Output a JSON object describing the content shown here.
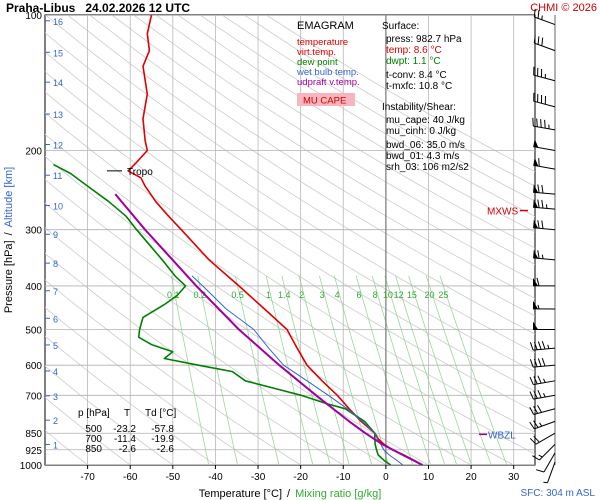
{
  "header": {
    "station": "Praha-Libus",
    "datetime": "24.02.2026 12 UTC",
    "copyright": "CHMI © 2026"
  },
  "legend": {
    "title": "EMAGRAM",
    "items": [
      {
        "label": "temperature",
        "color": "#e00000"
      },
      {
        "label": "virt.temp.",
        "color": "#e00000"
      },
      {
        "label": "dew point",
        "color": "#008000"
      },
      {
        "label": "wet bulb temp.",
        "color": "#3366cc"
      },
      {
        "label": "udpraft v.temp.",
        "color": "#a000a0"
      }
    ],
    "badge": "MU CAPE"
  },
  "surface": {
    "title": "Surface:",
    "lines": [
      {
        "text": "press: 982.7 hPa",
        "color": "#000000"
      },
      {
        "text": "temp: 8.6 °C",
        "color": "#e00000"
      },
      {
        "text": "dwpt: 1.1 °C",
        "color": "#008000"
      }
    ],
    "tconv": "t-conv: 8.4 °C",
    "tmxfc": "t-mxfc: 10.8 °C"
  },
  "instability": {
    "title": "Instability/Shear:",
    "lines": [
      "mu_cape: 40 J/kg",
      "mu_cinh: 0 J/kg",
      "",
      "bwd_06: 35.0 m/s",
      "bwd_01: 4.3 m/s",
      "srh_03: 106 m2/s2"
    ]
  },
  "table": {
    "headers": [
      "p [hPa]",
      "T",
      "Td [°C]"
    ],
    "rows": [
      [
        "500",
        "-23.2",
        "-57.8"
      ],
      [
        "700",
        "-11.4",
        "-19.9"
      ],
      [
        "850",
        "-2.6",
        "-2.6"
      ]
    ]
  },
  "labels": {
    "tropo": "Tropo",
    "mxws": "MXWS",
    "wbzl": "WBZL",
    "sfc": "SFC: 304 m ASL"
  },
  "chart_data": {
    "type": "line",
    "xlabel": "Temperature [°C]",
    "xlabel_sep": "/",
    "xlabel2": "Mixing ratio [g/kg]",
    "ylabel": "Pressure [hPa]",
    "ylabel_sep": "/",
    "ylabel2": "Altitude [km]",
    "xlim": [
      -80,
      35
    ],
    "ylim": [
      1000,
      100
    ],
    "y_scale": "log",
    "x_ticks": [
      -70,
      -60,
      -50,
      -40,
      -30,
      -20,
      -10,
      0,
      10,
      20,
      30
    ],
    "p_ticks": [
      100,
      200,
      300,
      400,
      500,
      600,
      700,
      850,
      925,
      1000
    ],
    "km_ticks": [
      {
        "km": "1",
        "p": 900
      },
      {
        "km": "2",
        "p": 795
      },
      {
        "km": "3",
        "p": 702
      },
      {
        "km": "4",
        "p": 618
      },
      {
        "km": "5",
        "p": 541
      },
      {
        "km": "6",
        "p": 472
      },
      {
        "km": "7",
        "p": 410
      },
      {
        "km": "8",
        "p": 356
      },
      {
        "km": "9",
        "p": 307
      },
      {
        "km": "10",
        "p": 265
      },
      {
        "km": "11",
        "p": 227
      },
      {
        "km": "12",
        "p": 194
      },
      {
        "km": "13",
        "p": 166
      },
      {
        "km": "14",
        "p": 141
      },
      {
        "km": "15",
        "p": 121
      },
      {
        "km": "16",
        "p": 103
      }
    ],
    "mixing_ratio_labels": [
      "0.1",
      "0.2",
      "0.5",
      "1",
      "1.4",
      "2",
      "3",
      "4",
      "6",
      "8",
      "10",
      "12",
      "15",
      "20",
      "25"
    ],
    "series": [
      {
        "name": "temperature",
        "color": "#e00000",
        "points": [
          [
            1000,
            8.6
          ],
          [
            975,
            6.5
          ],
          [
            950,
            4.2
          ],
          [
            925,
            1.5
          ],
          [
            900,
            -0.4
          ],
          [
            875,
            -1.8
          ],
          [
            850,
            -2.6
          ],
          [
            800,
            -5.8
          ],
          [
            750,
            -8.6
          ],
          [
            700,
            -11.4
          ],
          [
            650,
            -15.0
          ],
          [
            600,
            -18.5
          ],
          [
            550,
            -20.8
          ],
          [
            500,
            -23.2
          ],
          [
            450,
            -28.5
          ],
          [
            400,
            -34.5
          ],
          [
            350,
            -41.5
          ],
          [
            300,
            -48.0
          ],
          [
            280,
            -51.0
          ],
          [
            260,
            -54.0
          ],
          [
            240,
            -56.5
          ],
          [
            230,
            -57.5
          ],
          [
            222,
            -60.5
          ],
          [
            215,
            -59.0
          ],
          [
            200,
            -56.0
          ],
          [
            190,
            -56.5
          ],
          [
            170,
            -57.0
          ],
          [
            150,
            -56.0
          ],
          [
            130,
            -57.0
          ],
          [
            120,
            -55.5
          ],
          [
            110,
            -56.0
          ],
          [
            100,
            -55.0
          ]
        ]
      },
      {
        "name": "dew point",
        "color": "#008000",
        "points": [
          [
            1000,
            1.1
          ],
          [
            975,
            -0.5
          ],
          [
            950,
            -1.8
          ],
          [
            925,
            -2.2
          ],
          [
            900,
            -2.5
          ],
          [
            875,
            -2.6
          ],
          [
            850,
            -2.6
          ],
          [
            800,
            -5.0
          ],
          [
            750,
            -9.5
          ],
          [
            730,
            -14.0
          ],
          [
            700,
            -19.9
          ],
          [
            680,
            -25.0
          ],
          [
            650,
            -33.0
          ],
          [
            620,
            -36.0
          ],
          [
            600,
            -44.0
          ],
          [
            580,
            -52.0
          ],
          [
            560,
            -50.0
          ],
          [
            540,
            -55.0
          ],
          [
            520,
            -58.0
          ],
          [
            500,
            -57.8
          ],
          [
            470,
            -57.0
          ],
          [
            440,
            -52.0
          ],
          [
            420,
            -49.0
          ],
          [
            400,
            -47.0
          ],
          [
            380,
            -49.5
          ],
          [
            350,
            -52.5
          ],
          [
            320,
            -56.0
          ],
          [
            300,
            -58.5
          ],
          [
            280,
            -61.0
          ],
          [
            260,
            -65.0
          ],
          [
            240,
            -70.0
          ],
          [
            225,
            -74.0
          ],
          [
            215,
            -78.0
          ]
        ]
      },
      {
        "name": "wet bulb temp.",
        "color": "#3366cc",
        "points": [
          [
            1000,
            4.0
          ],
          [
            975,
            2.5
          ],
          [
            950,
            0.8
          ],
          [
            925,
            -0.5
          ],
          [
            900,
            -1.2
          ],
          [
            875,
            -2.0
          ],
          [
            850,
            -2.6
          ],
          [
            800,
            -5.5
          ],
          [
            750,
            -9.0
          ],
          [
            700,
            -13.5
          ],
          [
            650,
            -18.5
          ],
          [
            600,
            -24.0
          ],
          [
            550,
            -27.5
          ],
          [
            500,
            -31.0
          ],
          [
            450,
            -37.5
          ],
          [
            400,
            -43.0
          ],
          [
            380,
            -45.5
          ]
        ]
      },
      {
        "name": "udpraft v.temp.",
        "color": "#a000a0",
        "points": [
          [
            1000,
            8.6
          ],
          [
            950,
            4.0
          ],
          [
            900,
            -0.8
          ],
          [
            850,
            -4.8
          ],
          [
            800,
            -8.6
          ],
          [
            700,
            -16.4
          ],
          [
            600,
            -25.0
          ],
          [
            500,
            -34.5
          ],
          [
            400,
            -44.5
          ],
          [
            300,
            -56.5
          ],
          [
            250,
            -63.5
          ]
        ]
      }
    ],
    "tropo_p": 222,
    "mxws_p": 272,
    "wbzl_p": 855,
    "wind_barbs": [
      {
        "p": 985,
        "dir": 200,
        "spd": 5
      },
      {
        "p": 940,
        "dir": 210,
        "spd": 12
      },
      {
        "p": 900,
        "dir": 225,
        "spd": 18
      },
      {
        "p": 850,
        "dir": 240,
        "spd": 22
      },
      {
        "p": 800,
        "dir": 250,
        "spd": 25
      },
      {
        "p": 750,
        "dir": 255,
        "spd": 30
      },
      {
        "p": 700,
        "dir": 260,
        "spd": 35
      },
      {
        "p": 650,
        "dir": 260,
        "spd": 38
      },
      {
        "p": 600,
        "dir": 265,
        "spd": 40
      },
      {
        "p": 550,
        "dir": 265,
        "spd": 45
      },
      {
        "p": 500,
        "dir": 270,
        "spd": 50
      },
      {
        "p": 450,
        "dir": 270,
        "spd": 55
      },
      {
        "p": 400,
        "dir": 270,
        "spd": 60
      },
      {
        "p": 350,
        "dir": 275,
        "spd": 65
      },
      {
        "p": 300,
        "dir": 275,
        "spd": 70
      },
      {
        "p": 270,
        "dir": 275,
        "spd": 75
      },
      {
        "p": 250,
        "dir": 275,
        "spd": 70
      },
      {
        "p": 220,
        "dir": 280,
        "spd": 60
      },
      {
        "p": 200,
        "dir": 280,
        "spd": 50
      },
      {
        "p": 180,
        "dir": 280,
        "spd": 45
      },
      {
        "p": 160,
        "dir": 285,
        "spd": 40
      },
      {
        "p": 140,
        "dir": 285,
        "spd": 35
      },
      {
        "p": 120,
        "dir": 290,
        "spd": 30
      },
      {
        "p": 105,
        "dir": 290,
        "spd": 25
      }
    ]
  }
}
